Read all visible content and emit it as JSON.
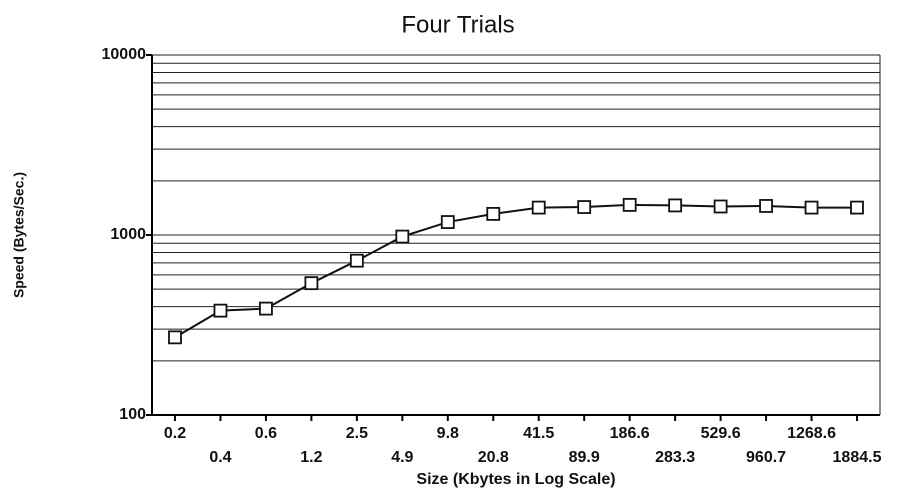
{
  "chart_data": {
    "type": "line",
    "title": "Four Trials",
    "x_label": "Size (Kbytes in Log Scale)",
    "y_label": "Speed (Bytes/Sec.)",
    "categories": [
      "0.2",
      "0.4",
      "0.6",
      "1.2",
      "2.5",
      "4.9",
      "9.8",
      "20.8",
      "41.5",
      "89.9",
      "186.6",
      "283.3",
      "529.6",
      "960.7",
      "1268.6",
      "1884.5"
    ],
    "values": [
      270,
      380,
      390,
      540,
      720,
      980,
      1180,
      1310,
      1420,
      1430,
      1470,
      1460,
      1440,
      1450,
      1420,
      1420
    ],
    "color": "#111111",
    "ylim": [
      100,
      10000
    ],
    "yticks": [
      100,
      1000,
      10000
    ],
    "minor_yticks": [
      200,
      300,
      400,
      500,
      600,
      700,
      800,
      900,
      2000,
      3000,
      4000,
      5000,
      6000,
      7000,
      8000,
      9000
    ],
    "log_y": true,
    "grid": true
  }
}
